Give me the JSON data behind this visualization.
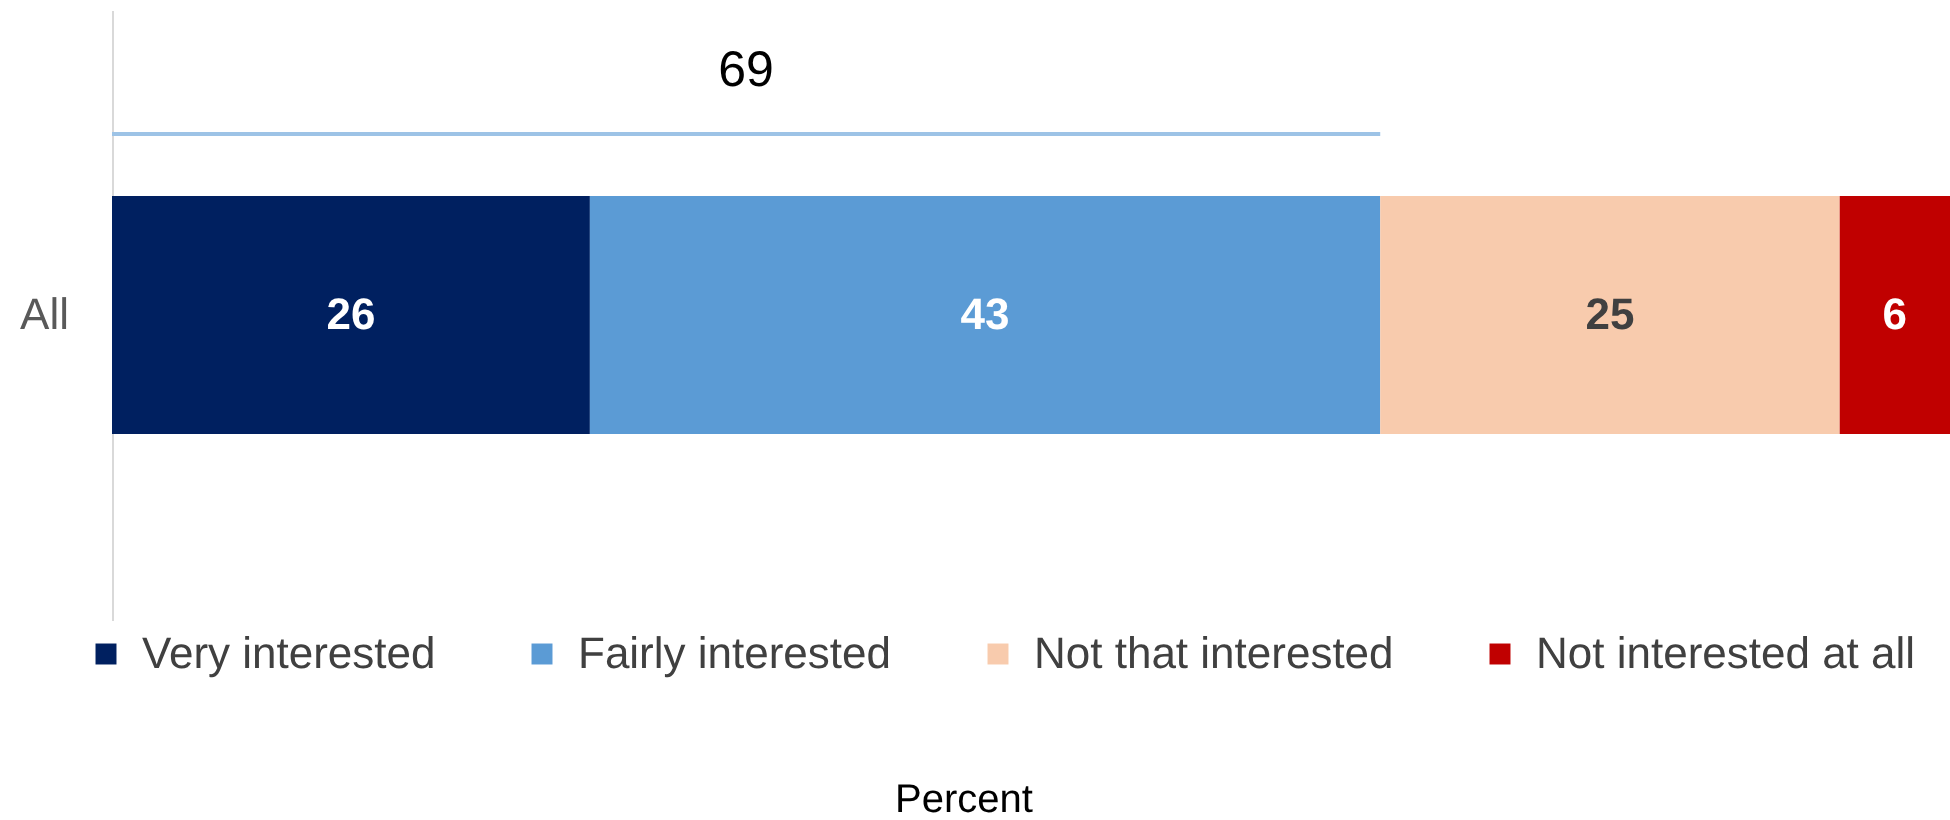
{
  "chart_data": {
    "type": "bar",
    "orientation": "horizontal",
    "stacked": true,
    "categories": [
      "All"
    ],
    "xlim": [
      0,
      100
    ],
    "tick_labels": "y",
    "legend": "bottom",
    "data_labels": true,
    "annotations": [
      "69",
      "Percent"
    ],
    "series": [
      {
        "name": "Very interested",
        "color": "#002060",
        "values": [
          26
        ]
      },
      {
        "name": "Fairly interested",
        "color": "#5b9bd5",
        "values": [
          43
        ]
      },
      {
        "name": "Not that interested",
        "color": "#f8cbad",
        "values": [
          25
        ]
      },
      {
        "name": "Not interested at all",
        "color": "#c00000",
        "values": [
          6
        ]
      }
    ]
  }
}
